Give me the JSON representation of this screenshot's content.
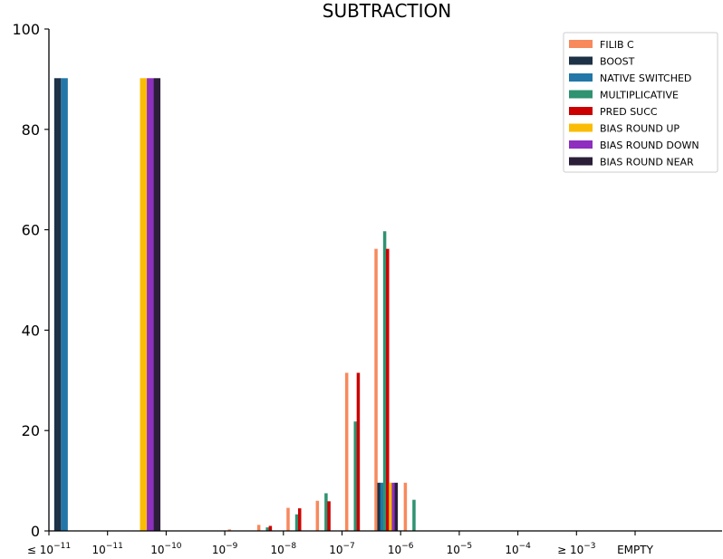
{
  "chart_data": {
    "type": "bar",
    "title": "SUBTRACTION",
    "xlabel": "",
    "ylabel": "",
    "ylim": [
      0,
      100
    ],
    "yticks": [
      "0",
      "20",
      "40",
      "60",
      "80",
      "100"
    ],
    "categories": [
      {
        "base": "≤ 10",
        "exp": "−11"
      },
      {
        "base": "10",
        "exp": "−11"
      },
      {
        "base": "10",
        "exp": "−10"
      },
      {
        "base": "10",
        "exp": "−9"
      },
      {
        "base": "10",
        "exp": "−8"
      },
      {
        "base": "10",
        "exp": "−7"
      },
      {
        "base": "10",
        "exp": "−6"
      },
      {
        "base": "10",
        "exp": "−5"
      },
      {
        "base": "10",
        "exp": "−4"
      },
      {
        "base": "≥ 10",
        "exp": "−3"
      },
      {
        "base": "EMPTY",
        "exp": ""
      }
    ],
    "series": [
      {
        "name": "FILIB C",
        "color": "#f7895c",
        "values": [
          0,
          0,
          0,
          0,
          0,
          0,
          0,
          0,
          0,
          0,
          0
        ],
        "interval_values": [
          {
            "x": -9.25,
            "y": 0.3
          },
          {
            "x": -8.75,
            "y": 1.2
          },
          {
            "x": -8.25,
            "y": 4.6
          },
          {
            "x": -7.75,
            "y": 6.0
          },
          {
            "x": -7.25,
            "y": 31.5
          },
          {
            "x": -6.75,
            "y": 56.2
          },
          {
            "x": -6.25,
            "y": 9.6
          }
        ]
      },
      {
        "name": "BOOST",
        "color": "#1d3147",
        "values": [
          90.2,
          0,
          0,
          0,
          0,
          0,
          0,
          0,
          0,
          0,
          0
        ],
        "interval_values": [
          {
            "x": -6.75,
            "y": 9.6
          }
        ]
      },
      {
        "name": "NATIVE SWITCHED",
        "color": "#2277a8",
        "values": [
          90.2,
          0,
          0,
          0,
          0,
          0,
          0,
          0,
          0,
          0,
          0
        ],
        "interval_values": [
          {
            "x": -6.75,
            "y": 9.6
          }
        ]
      },
      {
        "name": "MULTIPLICATIVE",
        "color": "#2f9270",
        "values": [
          0,
          0,
          0,
          0,
          0,
          0,
          0,
          0,
          0,
          0,
          0
        ],
        "interval_values": [
          {
            "x": -8.75,
            "y": 0.7
          },
          {
            "x": -8.25,
            "y": 3.3
          },
          {
            "x": -7.75,
            "y": 7.5
          },
          {
            "x": -7.25,
            "y": 21.8
          },
          {
            "x": -6.75,
            "y": 59.7
          },
          {
            "x": -6.25,
            "y": 6.2
          }
        ]
      },
      {
        "name": "PRED SUCC",
        "color": "#cc0000",
        "values": [
          0,
          0,
          0,
          0,
          0,
          0,
          0,
          0,
          0,
          0,
          0
        ],
        "interval_values": [
          {
            "x": -8.75,
            "y": 1.0
          },
          {
            "x": -8.25,
            "y": 4.5
          },
          {
            "x": -7.75,
            "y": 5.9
          },
          {
            "x": -7.25,
            "y": 31.5
          },
          {
            "x": -6.75,
            "y": 56.2
          }
        ]
      },
      {
        "name": "BIAS ROUND UP",
        "color": "#fbbc05",
        "values": [
          0,
          90.2,
          0,
          0,
          0,
          0,
          0,
          0,
          0,
          0,
          0
        ],
        "interval_values": [
          {
            "x": -6.75,
            "y": 9.6
          }
        ]
      },
      {
        "name": "BIAS ROUND DOWN",
        "color": "#8e2fc0",
        "values": [
          0,
          90.2,
          0,
          0,
          0,
          0,
          0,
          0,
          0,
          0,
          0
        ],
        "interval_values": [
          {
            "x": -6.75,
            "y": 9.6
          }
        ]
      },
      {
        "name": "BIAS ROUND NEAR",
        "color": "#2b1e39",
        "values": [
          0,
          90.2,
          0,
          0,
          0,
          0,
          0,
          0,
          0,
          0,
          0
        ],
        "interval_values": [
          {
            "x": -6.75,
            "y": 9.6
          }
        ]
      }
    ],
    "legend_position": "top-right",
    "grid": false
  }
}
